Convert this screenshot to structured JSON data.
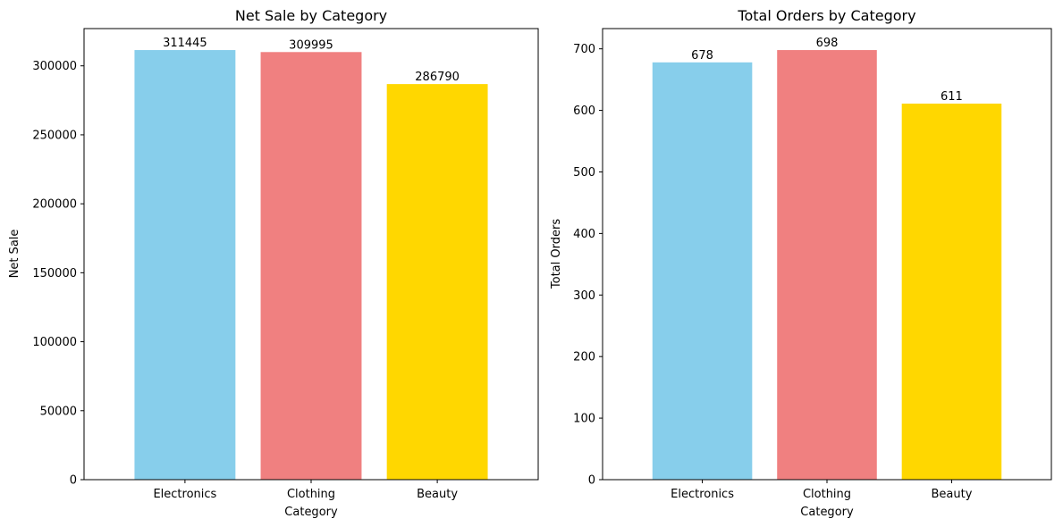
{
  "chart_data": [
    {
      "type": "bar",
      "title": "Net Sale by Category",
      "xlabel": "Category",
      "ylabel": "Net Sale",
      "categories": [
        "Electronics",
        "Clothing",
        "Beauty"
      ],
      "values": [
        311445,
        309995,
        286790
      ],
      "data_labels": [
        "311445",
        "309995",
        "286790"
      ],
      "colors": [
        "#87CEEB",
        "#F08080",
        "#FFD700"
      ],
      "yticks": [
        0,
        50000,
        100000,
        150000,
        200000,
        250000,
        300000
      ],
      "ylim": [
        0,
        327017
      ],
      "grid": false
    },
    {
      "type": "bar",
      "title": "Total Orders by Category",
      "xlabel": "Category",
      "ylabel": "Total Orders",
      "categories": [
        "Electronics",
        "Clothing",
        "Beauty"
      ],
      "values": [
        678,
        698,
        611
      ],
      "data_labels": [
        "678",
        "698",
        "611"
      ],
      "colors": [
        "#87CEEB",
        "#F08080",
        "#FFD700"
      ],
      "yticks": [
        0,
        100,
        200,
        300,
        400,
        500,
        600,
        700
      ],
      "ylim": [
        0,
        732.9
      ],
      "grid": false
    }
  ]
}
